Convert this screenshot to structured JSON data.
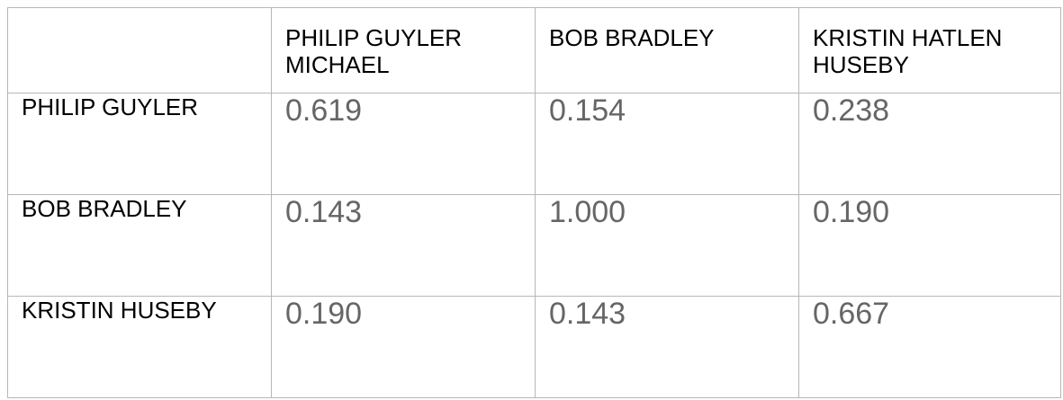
{
  "table": {
    "header": {
      "corner": "",
      "columns": [
        "PHILIP GUYLER MICHAEL",
        "BOB BRADLEY",
        "KRISTIN HATLEN HUSEBY"
      ]
    },
    "rows": [
      {
        "label": "PHILIP GUYLER",
        "values": [
          "0.619",
          "0.154",
          "0.238"
        ]
      },
      {
        "label": "BOB BRADLEY",
        "values": [
          "0.143",
          "1.000",
          "0.190"
        ]
      },
      {
        "label": "KRISTIN HUSEBY",
        "values": [
          "0.190",
          "0.143",
          "0.667"
        ]
      }
    ]
  },
  "colors": {
    "border": "#b7b7b7",
    "label_text": "#000000",
    "value_text": "#666666"
  }
}
